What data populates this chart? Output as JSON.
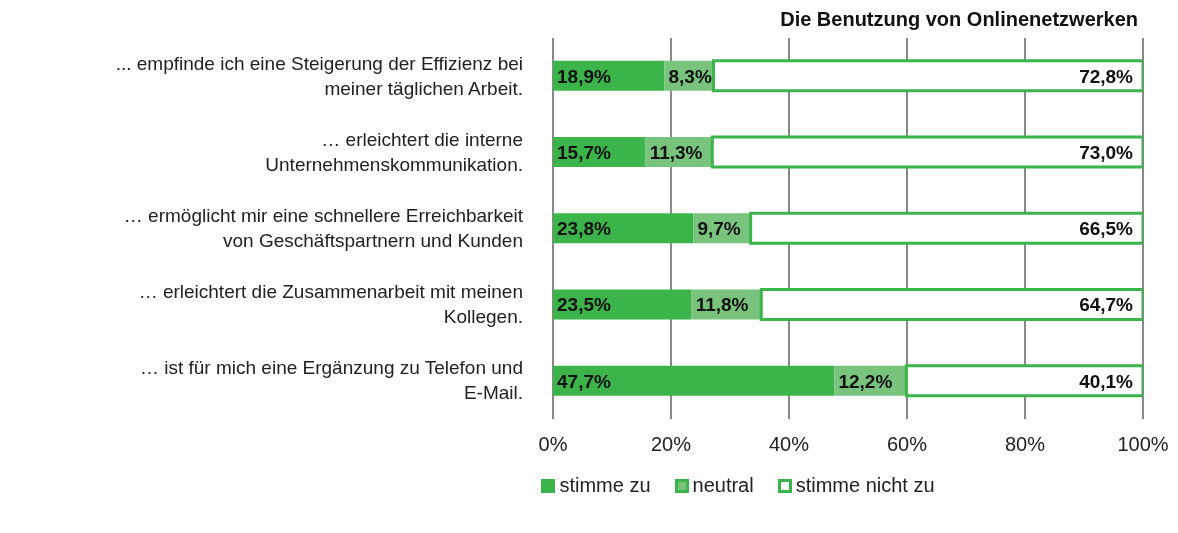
{
  "chart_data": {
    "type": "bar",
    "orientation": "horizontal",
    "stacked": true,
    "title": "Die Benutzung von Onlinenetzwerken",
    "categories": [
      "... empfinde ich eine Steigerung der Effizienz bei meiner täglichen Arbeit.",
      "… erleichtert die interne Unternehmenskommunikation.",
      "… ermöglicht mir eine schnellere Erreichbarkeit von Geschäftspartnern und Kunden",
      "… erleichtert die Zusammenarbeit mit meinen Kollegen.",
      "… ist für mich eine Ergänzung zu Telefon und E-Mail."
    ],
    "series": [
      {
        "name": "stimme zu",
        "color": "#3bb44a",
        "values": [
          18.9,
          15.7,
          23.8,
          23.5,
          47.7
        ],
        "value_labels": [
          "18,9%",
          "15,7%",
          "23,8%",
          "23,5%",
          "47,7%"
        ]
      },
      {
        "name": "neutral",
        "color": "#78c47c",
        "values": [
          8.3,
          11.3,
          9.7,
          11.8,
          12.2
        ],
        "value_labels": [
          "8,3%",
          "11,3%",
          "9,7%",
          "11,8%",
          "12,2%"
        ]
      },
      {
        "name": "stimme nicht zu",
        "color": "#ffffff",
        "values": [
          72.8,
          73.0,
          66.5,
          64.7,
          40.1
        ],
        "value_labels": [
          "72,8%",
          "73,0%",
          "66,5%",
          "64,7%",
          "40,1%"
        ]
      }
    ],
    "xlim": [
      0,
      100
    ],
    "xticks": [
      {
        "value": 0,
        "label": "0%"
      },
      {
        "value": 20,
        "label": "20%"
      },
      {
        "value": 40,
        "label": "40%"
      },
      {
        "value": 60,
        "label": "60%"
      },
      {
        "value": 80,
        "label": "80%"
      },
      {
        "value": 100,
        "label": "100%"
      }
    ],
    "grid": "x",
    "legend": "bottom"
  }
}
